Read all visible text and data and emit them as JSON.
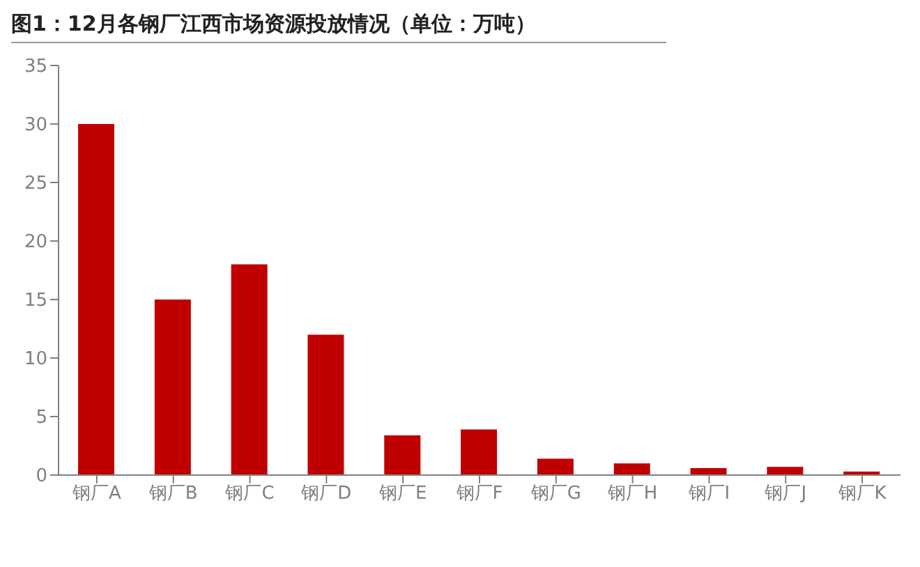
{
  "chart_data": {
    "type": "bar",
    "title": "图1：12月各钢厂江西市场资源投放情况（单位：万吨）",
    "categories": [
      "钢厂A",
      "钢厂B",
      "钢厂C",
      "钢厂D",
      "钢厂E",
      "钢厂F",
      "钢厂G",
      "钢厂H",
      "钢厂I",
      "钢厂J",
      "钢厂K"
    ],
    "values": [
      30,
      15,
      18,
      12,
      3.4,
      3.9,
      1.4,
      1.0,
      0.6,
      0.7,
      0.3
    ],
    "color": "#c00000",
    "ylim": [
      0,
      35
    ],
    "yticks": [
      0,
      5,
      10,
      15,
      20,
      25,
      30,
      35
    ],
    "grid": false,
    "legend": false
  }
}
